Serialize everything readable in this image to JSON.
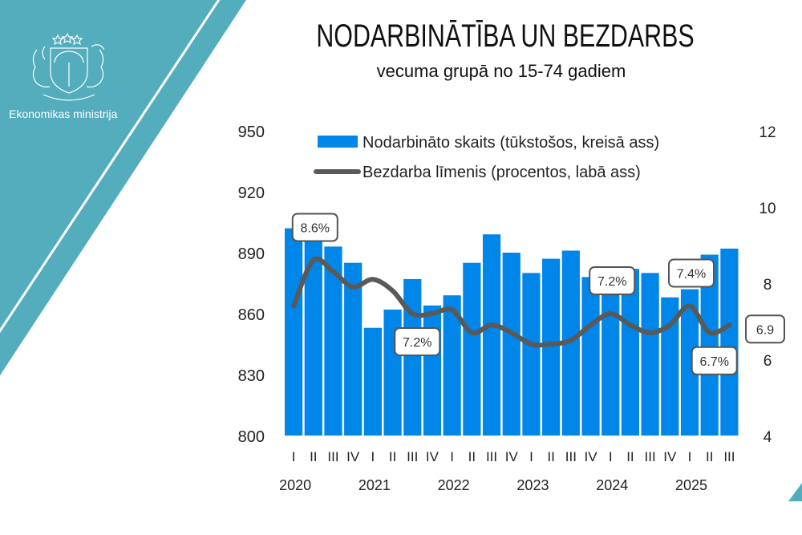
{
  "header": {
    "organization": "Ekonomikas ministrija",
    "title": "NODARBINĀTĪBA UN BEZDARBS",
    "subtitle": "vecuma grupā no 15-74 gadiem"
  },
  "colors": {
    "panel": "#53adbd",
    "bars": "#0085e8",
    "line": "#595959"
  },
  "chart_data": {
    "type": "bar+line",
    "title": "NODARBINĀTĪBA UN BEZDARBS",
    "subtitle": "vecuma grupā no 15-74 gadiem",
    "quarters": [
      "I",
      "II",
      "III",
      "IV",
      "I",
      "II",
      "III",
      "IV",
      "I",
      "II",
      "III",
      "IV",
      "I",
      "II",
      "III",
      "IV",
      "I",
      "II",
      "III",
      "IV",
      "I",
      "II",
      "III"
    ],
    "years": [
      {
        "label": "2020",
        "start_index": 0
      },
      {
        "label": "2021",
        "start_index": 4
      },
      {
        "label": "2022",
        "start_index": 8
      },
      {
        "label": "2023",
        "start_index": 12
      },
      {
        "label": "2024",
        "start_index": 16
      },
      {
        "label": "2025",
        "start_index": 20
      }
    ],
    "series": [
      {
        "name": "Nodarbināto skaits (tūkstošos, kreisā ass)",
        "type": "bar",
        "axis": "left",
        "values": [
          902,
          896,
          893,
          885,
          853,
          862,
          877,
          864,
          869,
          885,
          899,
          890,
          880,
          887,
          891,
          878,
          874,
          882,
          880,
          868,
          872,
          889,
          892
        ]
      },
      {
        "name": "Bezdarba līmenis (procentos, labā ass)",
        "type": "line",
        "axis": "right",
        "values": [
          7.4,
          8.6,
          8.3,
          7.9,
          8.1,
          7.8,
          7.2,
          7.2,
          7.3,
          6.7,
          6.9,
          6.7,
          6.4,
          6.4,
          6.5,
          6.9,
          7.2,
          6.9,
          6.7,
          6.9,
          7.4,
          6.7,
          6.9
        ]
      }
    ],
    "annotations": [
      {
        "index": 1,
        "text": "8.6%",
        "placement": "above"
      },
      {
        "index": 6,
        "text": "7.2%",
        "placement": "below"
      },
      {
        "index": 16,
        "text": "7.2%",
        "placement": "above"
      },
      {
        "index": 20,
        "text": "7.4%",
        "placement": "above"
      },
      {
        "index": 21,
        "text": "6.7%",
        "placement": "below"
      },
      {
        "index": 22,
        "text": "6.9",
        "placement": "right"
      }
    ],
    "left_axis": {
      "ylim": [
        800,
        950
      ],
      "ticks": [
        "800",
        "830",
        "860",
        "890",
        "920",
        "950"
      ]
    },
    "right_axis": {
      "ylim": [
        4,
        12
      ],
      "ticks": [
        "4",
        "6",
        "8",
        "10",
        "12"
      ]
    },
    "legend_position": "top",
    "grid": false
  }
}
